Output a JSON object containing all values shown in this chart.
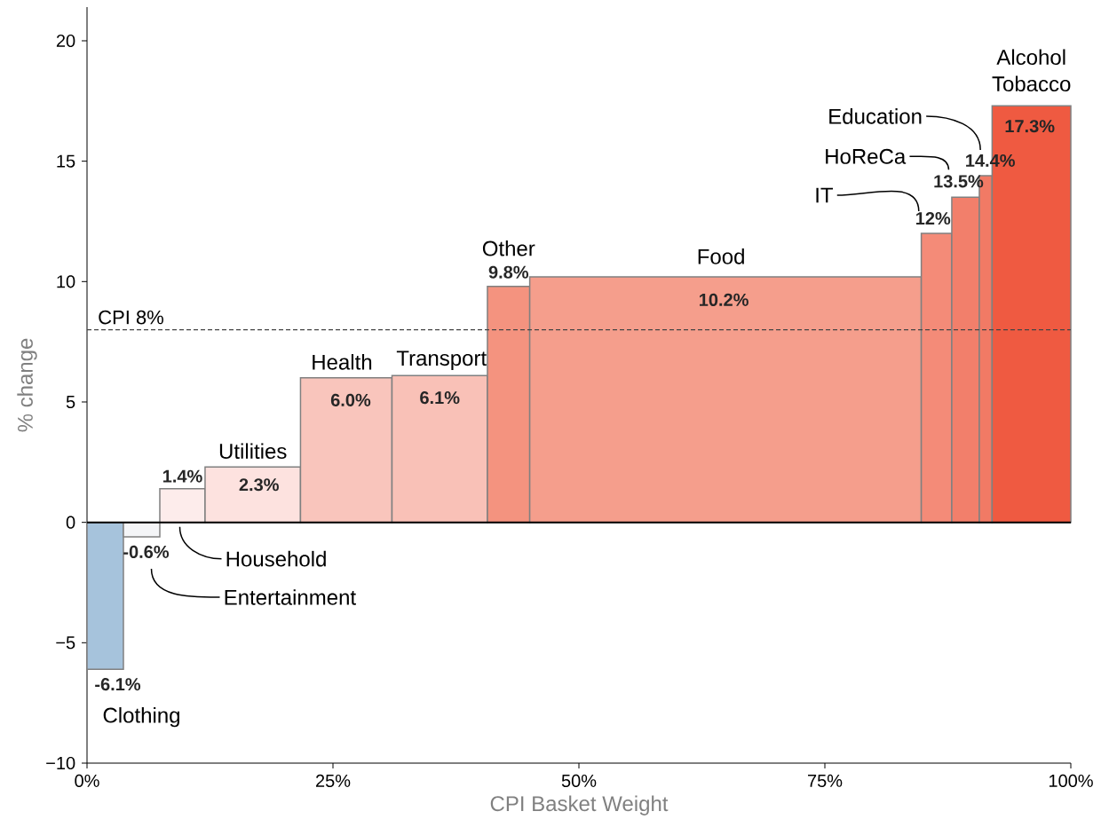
{
  "chart_data": {
    "type": "histogram",
    "xlabel": "CPI Basket Weight",
    "ylabel": "% change",
    "bins": [
      0,
      3.7,
      7.4,
      12.0,
      21.7,
      31.0,
      40.7,
      45.0,
      84.8,
      87.9,
      90.7,
      92.0,
      100
    ],
    "values": [
      -6.1,
      -0.6,
      1.4,
      2.3,
      6.0,
      6.1,
      9.8,
      10.2,
      12,
      13.5,
      14.4,
      17.3
    ],
    "value_labels": [
      "-6.1%",
      "-0.6%",
      "1.4%",
      "2.3%",
      "6.0%",
      "6.1%",
      "9.8%",
      "10.2%",
      "12%",
      "13.5%",
      "14.4%",
      "17.3%"
    ],
    "colors": [
      "#a6c3dc",
      "#f4f5f7",
      "#fdeceb",
      "#fde2df",
      "#f9c5bc",
      "#f9c1b7",
      "#f4937f",
      "#f59e8c",
      "#f48b78",
      "#f27f6b",
      "#f17a65",
      "#ef5a41"
    ],
    "xlim": [
      0,
      100
    ],
    "ylim": [
      -10,
      21.4
    ],
    "xticks": [
      {
        "value": 0,
        "label": "0%"
      },
      {
        "value": 25,
        "label": "25%"
      },
      {
        "value": 50,
        "label": "50%"
      },
      {
        "value": 75,
        "label": "75%"
      },
      {
        "value": 100,
        "label": "100%"
      }
    ],
    "yticks": [
      {
        "value": -10,
        "label": "−10"
      },
      {
        "value": -5,
        "label": "−5"
      },
      0,
      5,
      10,
      15,
      20
    ],
    "ref_lines": [
      {
        "axis": "y",
        "value": 8,
        "label": "CPI 8%",
        "color": "#444444",
        "line_style": "dashed"
      }
    ],
    "annotations": [
      {
        "text": "Clothing",
        "x": 1.85,
        "y": -6.1
      },
      "Entertainment",
      "Household",
      {
        "text": "Utilities",
        "x": 16.85,
        "y": 2.3
      },
      {
        "text": "Health",
        "x": 26.35,
        "y": 6.0
      },
      {
        "text": "Transport",
        "x": 35.85,
        "y": 6.1
      },
      {
        "text": "Other",
        "x": 42.85,
        "y": 9.8
      },
      {
        "text": "Food",
        "x": 64.9,
        "y": 10.2
      },
      "IT",
      "HoReCa",
      "Education",
      {
        "text": "Alcohol Tobacco",
        "x": 96.0,
        "y": 17.3
      }
    ]
  }
}
